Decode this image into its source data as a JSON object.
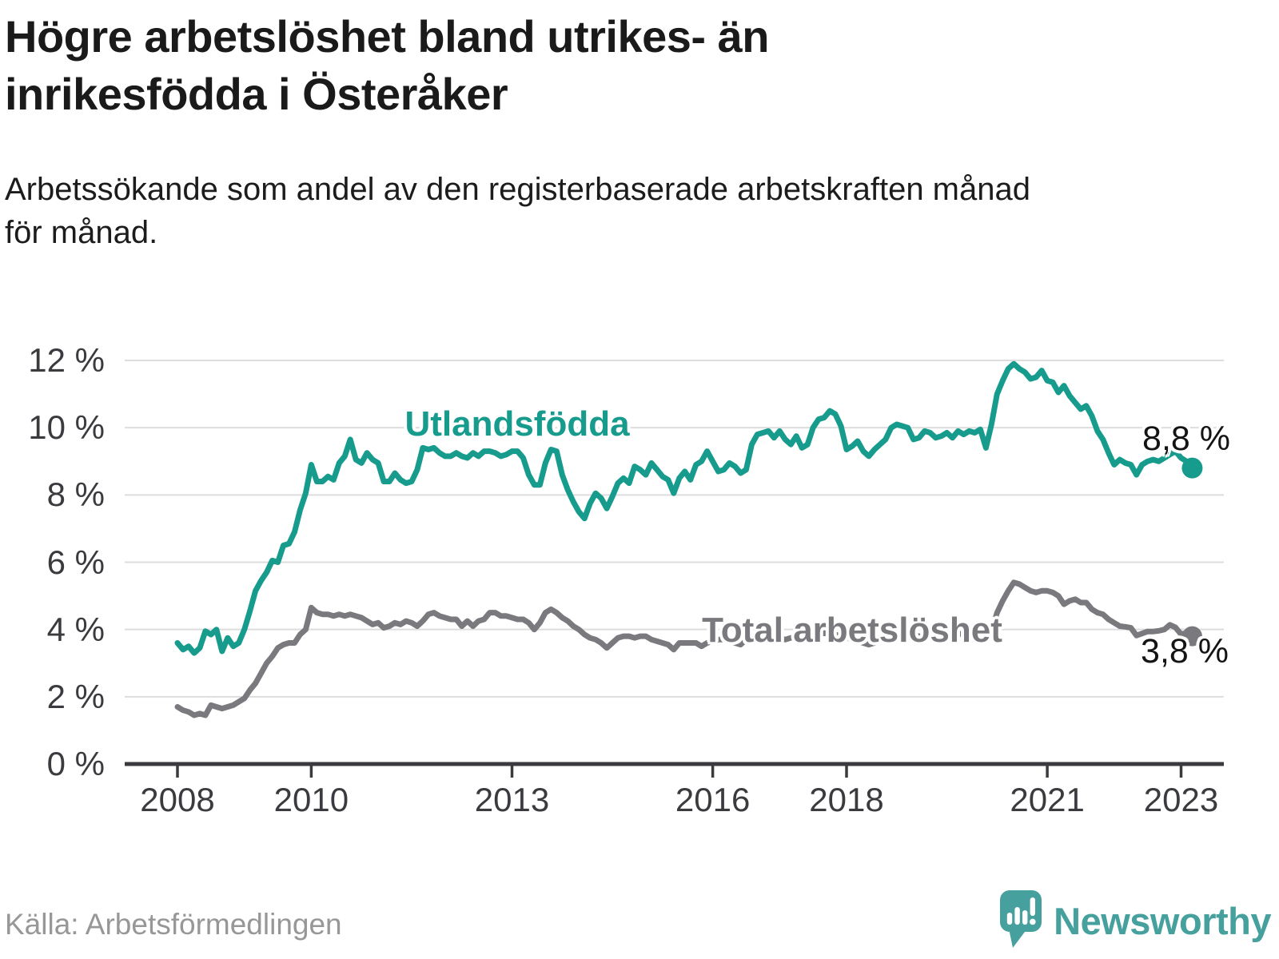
{
  "header": {
    "title": "Högre arbetslöshet bland utrikes- än\ninrikesfödda i Österåker",
    "subtitle": "Arbetssökande som andel av den registerbaserade arbetskraften månad\nför månad."
  },
  "footer": {
    "source": "Källa: Arbetsförmedlingen",
    "brand": "Newsworthy"
  },
  "colors": {
    "utlandsfodda": "#169b8d",
    "total": "#7a7a7e",
    "axis": "#3b3b3f",
    "grid": "#dddddd",
    "brand_teal": "#46a09d"
  },
  "chart_data": {
    "type": "line",
    "title": "Högre arbetslöshet bland utrikes- än inrikesfödda i Österåker",
    "subtitle": "Arbetssökande som andel av den registerbaserade arbetskraften månad för månad.",
    "unit": "%",
    "frequency": "monthly",
    "start_month": "2008-01",
    "end_month": "2023-03",
    "ylim": [
      0,
      12
    ],
    "grid": "horizontal",
    "legend_position": "inline-labels",
    "y_ticks": [
      {
        "v": 0,
        "label": "0 %"
      },
      {
        "v": 2,
        "label": "2 %"
      },
      {
        "v": 4,
        "label": "4 %"
      },
      {
        "v": 6,
        "label": "6 %"
      },
      {
        "v": 8,
        "label": "8 %"
      },
      {
        "v": 10,
        "label": "10 %"
      },
      {
        "v": 12,
        "label": "12 %"
      }
    ],
    "x_ticks": [
      {
        "m": 0,
        "label": "2008"
      },
      {
        "m": 24,
        "label": "2010"
      },
      {
        "m": 60,
        "label": "2013"
      },
      {
        "m": 96,
        "label": "2016"
      },
      {
        "m": 120,
        "label": "2018"
      },
      {
        "m": 156,
        "label": "2021"
      },
      {
        "m": 180,
        "label": "2023"
      }
    ],
    "series": [
      {
        "name": "Utlandsfödda",
        "color": "#169b8d",
        "end_label": "8,8 %",
        "end_value": 8.8,
        "values": [
          3.6,
          3.4,
          3.5,
          3.3,
          3.45,
          3.95,
          3.85,
          4.0,
          3.35,
          3.75,
          3.5,
          3.6,
          4.0,
          4.55,
          5.15,
          5.45,
          5.7,
          6.05,
          6.0,
          6.5,
          6.55,
          6.9,
          7.55,
          8.05,
          8.9,
          8.4,
          8.4,
          8.55,
          8.45,
          8.95,
          9.15,
          9.65,
          9.05,
          8.95,
          9.25,
          9.05,
          8.95,
          8.4,
          8.4,
          8.65,
          8.45,
          8.35,
          8.4,
          8.75,
          9.4,
          9.35,
          9.4,
          9.25,
          9.15,
          9.15,
          9.25,
          9.15,
          9.1,
          9.25,
          9.15,
          9.3,
          9.3,
          9.25,
          9.15,
          9.2,
          9.3,
          9.3,
          9.1,
          8.6,
          8.3,
          8.3,
          8.95,
          9.35,
          9.3,
          8.6,
          8.15,
          7.8,
          7.5,
          7.3,
          7.75,
          8.05,
          7.9,
          7.6,
          7.95,
          8.35,
          8.5,
          8.35,
          8.85,
          8.75,
          8.6,
          8.95,
          8.75,
          8.55,
          8.45,
          8.05,
          8.5,
          8.7,
          8.45,
          8.9,
          9.0,
          9.3,
          9.0,
          8.7,
          8.75,
          8.95,
          8.85,
          8.65,
          8.75,
          9.5,
          9.8,
          9.85,
          9.9,
          9.7,
          9.9,
          9.65,
          9.5,
          9.75,
          9.4,
          9.5,
          10.0,
          10.25,
          10.3,
          10.5,
          10.4,
          10.05,
          9.35,
          9.45,
          9.6,
          9.3,
          9.15,
          9.35,
          9.5,
          9.65,
          10.0,
          10.1,
          10.05,
          10.0,
          9.65,
          9.7,
          9.9,
          9.85,
          9.7,
          9.75,
          9.85,
          9.7,
          9.9,
          9.8,
          9.9,
          9.85,
          9.95,
          9.4,
          10.1,
          11.0,
          11.4,
          11.75,
          11.9,
          11.75,
          11.65,
          11.45,
          11.5,
          11.7,
          11.4,
          11.35,
          11.05,
          11.25,
          10.95,
          10.75,
          10.55,
          10.65,
          10.35,
          9.9,
          9.65,
          9.25,
          8.9,
          9.05,
          8.95,
          8.9,
          8.6,
          8.9,
          9.0,
          9.05,
          9.0,
          9.1,
          9.2,
          9.3,
          9.1,
          9.0,
          8.8
        ]
      },
      {
        "name": "Total arbetslöshet",
        "color": "#7a7a7e",
        "end_label": "3,8 %",
        "end_value": 3.8,
        "values": [
          1.7,
          1.6,
          1.55,
          1.45,
          1.5,
          1.45,
          1.75,
          1.7,
          1.65,
          1.7,
          1.75,
          1.85,
          1.95,
          2.2,
          2.4,
          2.7,
          3.0,
          3.2,
          3.45,
          3.55,
          3.6,
          3.6,
          3.85,
          4.0,
          4.65,
          4.5,
          4.45,
          4.45,
          4.4,
          4.45,
          4.4,
          4.45,
          4.4,
          4.35,
          4.25,
          4.15,
          4.2,
          4.05,
          4.1,
          4.2,
          4.15,
          4.25,
          4.2,
          4.1,
          4.25,
          4.45,
          4.5,
          4.4,
          4.35,
          4.3,
          4.3,
          4.1,
          4.25,
          4.1,
          4.25,
          4.3,
          4.5,
          4.5,
          4.4,
          4.4,
          4.35,
          4.3,
          4.3,
          4.2,
          4.0,
          4.2,
          4.5,
          4.6,
          4.5,
          4.35,
          4.25,
          4.1,
          4.0,
          3.85,
          3.75,
          3.7,
          3.6,
          3.45,
          3.6,
          3.75,
          3.8,
          3.8,
          3.75,
          3.8,
          3.8,
          3.7,
          3.65,
          3.6,
          3.55,
          3.4,
          3.6,
          3.6,
          3.6,
          3.6,
          3.5,
          3.6,
          3.65,
          3.7,
          3.7,
          3.65,
          3.6,
          3.55,
          3.7,
          3.75,
          3.8,
          3.75,
          3.75,
          3.7,
          3.75,
          3.7,
          3.75,
          3.8,
          3.75,
          3.7,
          3.8,
          3.85,
          3.9,
          3.85,
          3.85,
          3.8,
          3.75,
          3.7,
          3.65,
          3.6,
          3.55,
          3.6,
          3.7,
          3.75,
          3.8,
          3.75,
          3.8,
          3.8,
          3.85,
          3.8,
          3.75,
          3.8,
          3.75,
          3.8,
          3.9,
          3.9,
          3.85,
          3.9,
          3.9,
          3.9,
          3.95,
          3.9,
          3.95,
          4.5,
          4.85,
          5.15,
          5.4,
          5.35,
          5.25,
          5.15,
          5.1,
          5.15,
          5.15,
          5.1,
          5.0,
          4.75,
          4.85,
          4.9,
          4.8,
          4.8,
          4.6,
          4.5,
          4.45,
          4.3,
          4.2,
          4.1,
          4.08,
          4.05,
          3.82,
          3.88,
          3.94,
          3.94,
          3.96,
          4.0,
          4.14,
          4.06,
          3.86,
          3.9,
          3.8
        ]
      }
    ]
  }
}
